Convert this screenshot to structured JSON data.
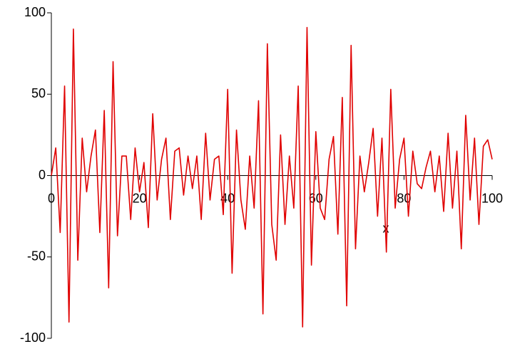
{
  "chart_data": {
    "type": "line",
    "x_label": "x",
    "x": [
      0,
      1,
      2,
      3,
      4,
      5,
      6,
      7,
      8,
      9,
      10,
      11,
      12,
      13,
      14,
      15,
      16,
      17,
      18,
      19,
      20,
      21,
      22,
      23,
      24,
      25,
      26,
      27,
      28,
      29,
      30,
      31,
      32,
      33,
      34,
      35,
      36,
      37,
      38,
      39,
      40,
      41,
      42,
      43,
      44,
      45,
      46,
      47,
      48,
      49,
      50,
      51,
      52,
      53,
      54,
      55,
      56,
      57,
      58,
      59,
      60,
      61,
      62,
      63,
      64,
      65,
      66,
      67,
      68,
      69,
      70,
      71,
      72,
      73,
      74,
      75,
      76,
      77,
      78,
      79,
      80,
      81,
      82,
      83,
      84,
      85,
      86,
      87,
      88,
      89,
      90,
      91,
      92,
      93,
      94,
      95,
      96,
      97,
      98,
      99,
      100
    ],
    "series": [
      {
        "color": "#e00000",
        "values": [
          0,
          17,
          -35,
          55,
          -90,
          90,
          -52,
          23,
          -10,
          12,
          28,
          -35,
          40,
          -69,
          70,
          -37,
          12,
          12,
          -27,
          17,
          -10,
          8,
          -32,
          38,
          -15,
          10,
          23,
          -27,
          15,
          17,
          -12,
          12,
          -8,
          12,
          -27,
          26,
          -15,
          10,
          12,
          -24,
          53,
          -60,
          28,
          -15,
          -33,
          12,
          -20,
          46,
          -85,
          81,
          -30,
          -52,
          25,
          -30,
          12,
          -20,
          55,
          -93,
          91,
          -55,
          27,
          -20,
          -27,
          10,
          24,
          -36,
          48,
          -80,
          80,
          -45,
          12,
          -10,
          8,
          29,
          -25,
          23,
          -47,
          53,
          -20,
          10,
          23,
          -25,
          15,
          -5,
          -8,
          5,
          15,
          -10,
          12,
          -22,
          26,
          -20,
          15,
          -45,
          37,
          -15,
          23,
          -30,
          18,
          22,
          10
        ]
      }
    ],
    "xlim": [
      0,
      100
    ],
    "ylim": [
      -100,
      100
    ],
    "xticks": [
      0,
      20,
      40,
      60,
      80,
      100
    ],
    "yticks": [
      -100,
      -50,
      0,
      50,
      100
    ]
  }
}
